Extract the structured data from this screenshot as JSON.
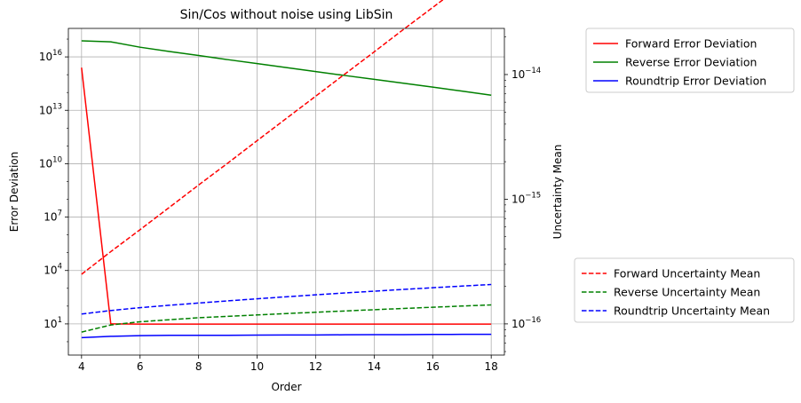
{
  "chart_data": {
    "type": "line",
    "title": "Sin/Cos without noise using LibSin",
    "xlabel": "Order",
    "ylabel_left": "Error Deviation",
    "ylabel_right": "Uncertainty Mean",
    "x": [
      4,
      5,
      6,
      7,
      8,
      9,
      10,
      11,
      12,
      13,
      14,
      15,
      16,
      17,
      18
    ],
    "x_ticks": [
      4,
      6,
      8,
      10,
      12,
      14,
      16,
      18
    ],
    "x_tick_labels": [
      "4",
      "6",
      "8",
      "10",
      "12",
      "14",
      "16",
      "18"
    ],
    "xlim": [
      3.55,
      18.45
    ],
    "left_axis": {
      "scale": "log",
      "ylim_log10": [
        -0.75,
        17.6
      ],
      "ticks_log10": [
        1,
        4,
        7,
        10,
        13,
        16
      ],
      "tick_labels": [
        {
          "base": "10",
          "exp": "1"
        },
        {
          "base": "10",
          "exp": "4"
        },
        {
          "base": "10",
          "exp": "7"
        },
        {
          "base": "10",
          "exp": "10"
        },
        {
          "base": "10",
          "exp": "13"
        },
        {
          "base": "10",
          "exp": "16"
        }
      ]
    },
    "right_axis": {
      "scale": "log",
      "ylim_log10": [
        -16.25,
        -13.63
      ],
      "ticks_log10": [
        -16,
        -15,
        -14
      ],
      "tick_labels": [
        {
          "base": "10",
          "exp": "−16"
        },
        {
          "base": "10",
          "exp": "−15"
        },
        {
          "base": "10",
          "exp": "−14"
        }
      ]
    },
    "grid": true,
    "series": [
      {
        "name": "Forward Error Deviation",
        "axis": "left",
        "style": "solid",
        "color": "#ff0000",
        "values": [
          2500000000000000.0,
          10,
          9.8,
          9.7,
          9.7,
          9.7,
          9.7,
          9.7,
          9.7,
          9.7,
          9.7,
          9.7,
          9.7,
          9.7,
          9.7
        ]
      },
      {
        "name": "Reverse Error Deviation",
        "axis": "left",
        "style": "solid",
        "color": "#008000",
        "values": [
          8e+16,
          7e+16,
          3.5e+16,
          2e+16,
          1.2e+16,
          7000000000000000.0,
          4200000000000000.0,
          2500000000000000.0,
          1500000000000000.0,
          900000000000000.0,
          550000000000000.0,
          330000000000000.0,
          200000000000000.0,
          120000000000000.0,
          70000000000000.0
        ]
      },
      {
        "name": "Roundtrip Error Deviation",
        "axis": "left",
        "style": "solid",
        "color": "#0000ff",
        "values": [
          1.7,
          2.0,
          2.2,
          2.3,
          2.3,
          2.3,
          2.35,
          2.4,
          2.4,
          2.45,
          2.5,
          2.5,
          2.55,
          2.6,
          2.6
        ]
      },
      {
        "name": "Forward Uncertainty Mean",
        "axis": "right",
        "style": "dashed",
        "color": "#ff0000",
        "values": [
          2.5e-16,
          3.8e-16,
          5.7e-16,
          8.6e-16,
          1.3e-15,
          1.95e-15,
          2.95e-15,
          4.45e-15,
          6.7e-15,
          1.01e-14,
          1.52e-14,
          2.3e-14,
          3.45e-14,
          5.2e-14,
          7.9e-14
        ]
      },
      {
        "name": "Reverse Uncertainty Mean",
        "axis": "right",
        "style": "dashed",
        "color": "#008000",
        "values": [
          8.6e-17,
          9.8e-17,
          1.04e-16,
          1.08e-16,
          1.12e-16,
          1.15e-16,
          1.18e-16,
          1.21e-16,
          1.24e-16,
          1.27e-16,
          1.3e-16,
          1.33e-16,
          1.36e-16,
          1.39e-16,
          1.42e-16
        ]
      },
      {
        "name": "Roundtrip Uncertainty Mean",
        "axis": "right",
        "style": "dashed",
        "color": "#0000ff",
        "values": [
          1.2e-16,
          1.28e-16,
          1.35e-16,
          1.41e-16,
          1.47e-16,
          1.53e-16,
          1.59e-16,
          1.65e-16,
          1.71e-16,
          1.77e-16,
          1.83e-16,
          1.89e-16,
          1.95e-16,
          2.01e-16,
          2.07e-16
        ]
      }
    ],
    "legends": [
      {
        "location": "top-right, outside",
        "entries": [
          "Forward Error Deviation",
          "Reverse Error Deviation",
          "Roundtrip Error Deviation"
        ]
      },
      {
        "location": "bottom-right, outside",
        "entries": [
          "Forward Uncertainty Mean",
          "Reverse Uncertainty Mean",
          "Roundtrip Uncertainty Mean"
        ]
      }
    ]
  }
}
